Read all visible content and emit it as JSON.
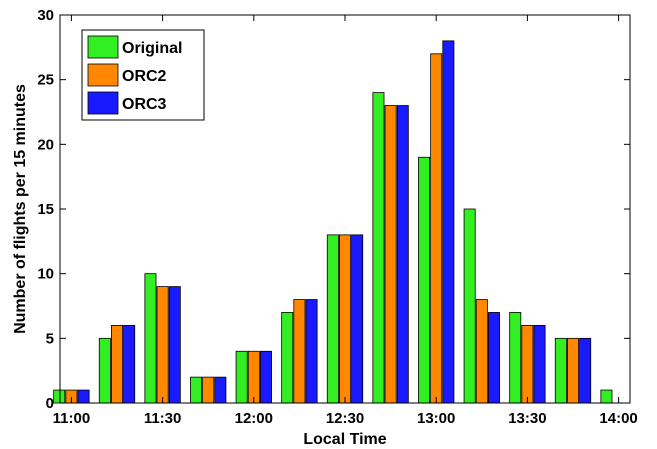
{
  "chart_data": {
    "type": "bar",
    "xlabel": "Local Time",
    "ylabel": "Number of flights per 15 minutes",
    "ylim": [
      0,
      30
    ],
    "yticks": [
      0,
      5,
      10,
      15,
      20,
      25,
      30
    ],
    "xticks": [
      "11:00",
      "11:30",
      "12:00",
      "12:30",
      "13:00",
      "13:30",
      "14:00"
    ],
    "categories": [
      "11:00",
      "11:15",
      "11:30",
      "11:45",
      "12:00",
      "12:15",
      "12:30",
      "12:45",
      "13:00",
      "13:15",
      "13:30",
      "13:45",
      "14:00"
    ],
    "series": [
      {
        "name": "Original",
        "color": "#33ee22",
        "values": [
          1,
          5,
          10,
          2,
          4,
          7,
          13,
          24,
          19,
          15,
          7,
          5,
          1
        ]
      },
      {
        "name": "ORC2",
        "color": "#ff8800",
        "values": [
          1,
          6,
          9,
          2,
          4,
          8,
          13,
          23,
          27,
          8,
          6,
          5,
          0
        ]
      },
      {
        "name": "ORC3",
        "color": "#1a1aff",
        "values": [
          1,
          6,
          9,
          2,
          4,
          8,
          13,
          23,
          28,
          7,
          6,
          5,
          0
        ]
      }
    ],
    "legend_position": "top-left",
    "grid": false
  }
}
